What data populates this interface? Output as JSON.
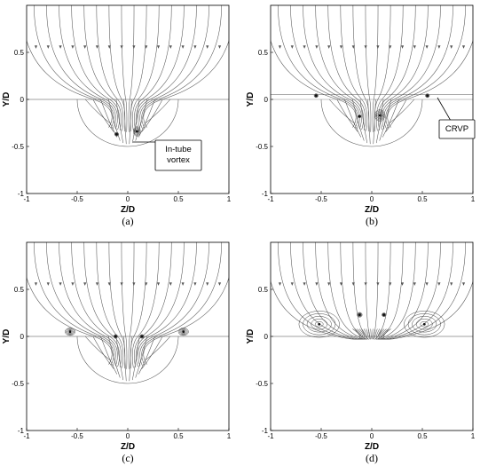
{
  "axes": {
    "x_label": "Z/D",
    "y_label": "Y/D",
    "x_ticks": [
      "-1",
      "-0.5",
      "0",
      "0.5",
      "1"
    ],
    "y_ticks": [
      "0.5",
      "0",
      "-0.5",
      "-1"
    ]
  },
  "panels": [
    {
      "id": "a",
      "caption": "(a)",
      "annotation": [
        "In-tube",
        "vortex"
      ],
      "tube_visible": true
    },
    {
      "id": "b",
      "caption": "(b)",
      "annotation": [
        "CRVP"
      ],
      "tube_visible": true
    },
    {
      "id": "c",
      "caption": "(c)",
      "annotation": [],
      "tube_visible": true
    },
    {
      "id": "d",
      "caption": "(d)",
      "annotation": [],
      "tube_visible": false
    }
  ]
}
